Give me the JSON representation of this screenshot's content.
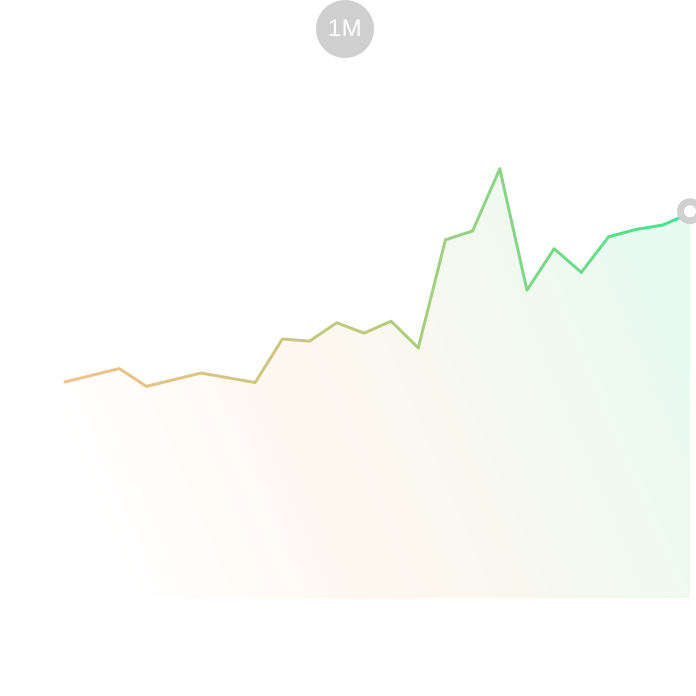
{
  "range_selector": {
    "label": "1M"
  },
  "colors": {
    "start": "#f5c08a",
    "mid": "#b9c97c",
    "end": "#3ee590",
    "fill_start": "#fde9d4",
    "fill_end": "#d3f8e4",
    "end_marker": "#d0d0d0"
  },
  "chart_data": {
    "type": "area",
    "title": "",
    "xlabel": "",
    "ylabel": "",
    "grid": false,
    "x": [
      1,
      3,
      4,
      6,
      8,
      9,
      10,
      11,
      12,
      13,
      14,
      15,
      16,
      17,
      18,
      19,
      20,
      21,
      22,
      23,
      24
    ],
    "series": [
      {
        "values": [
          23,
          27.5,
          21.5,
          26,
          22.8,
          37.5,
          36.8,
          43,
          39.5,
          43.5,
          34.5,
          71,
          74,
          95,
          54,
          68,
          60,
          72,
          74.5,
          76,
          80
        ]
      }
    ],
    "ylim": [
      -50,
      125
    ],
    "xlim": [
      1,
      24
    ]
  }
}
